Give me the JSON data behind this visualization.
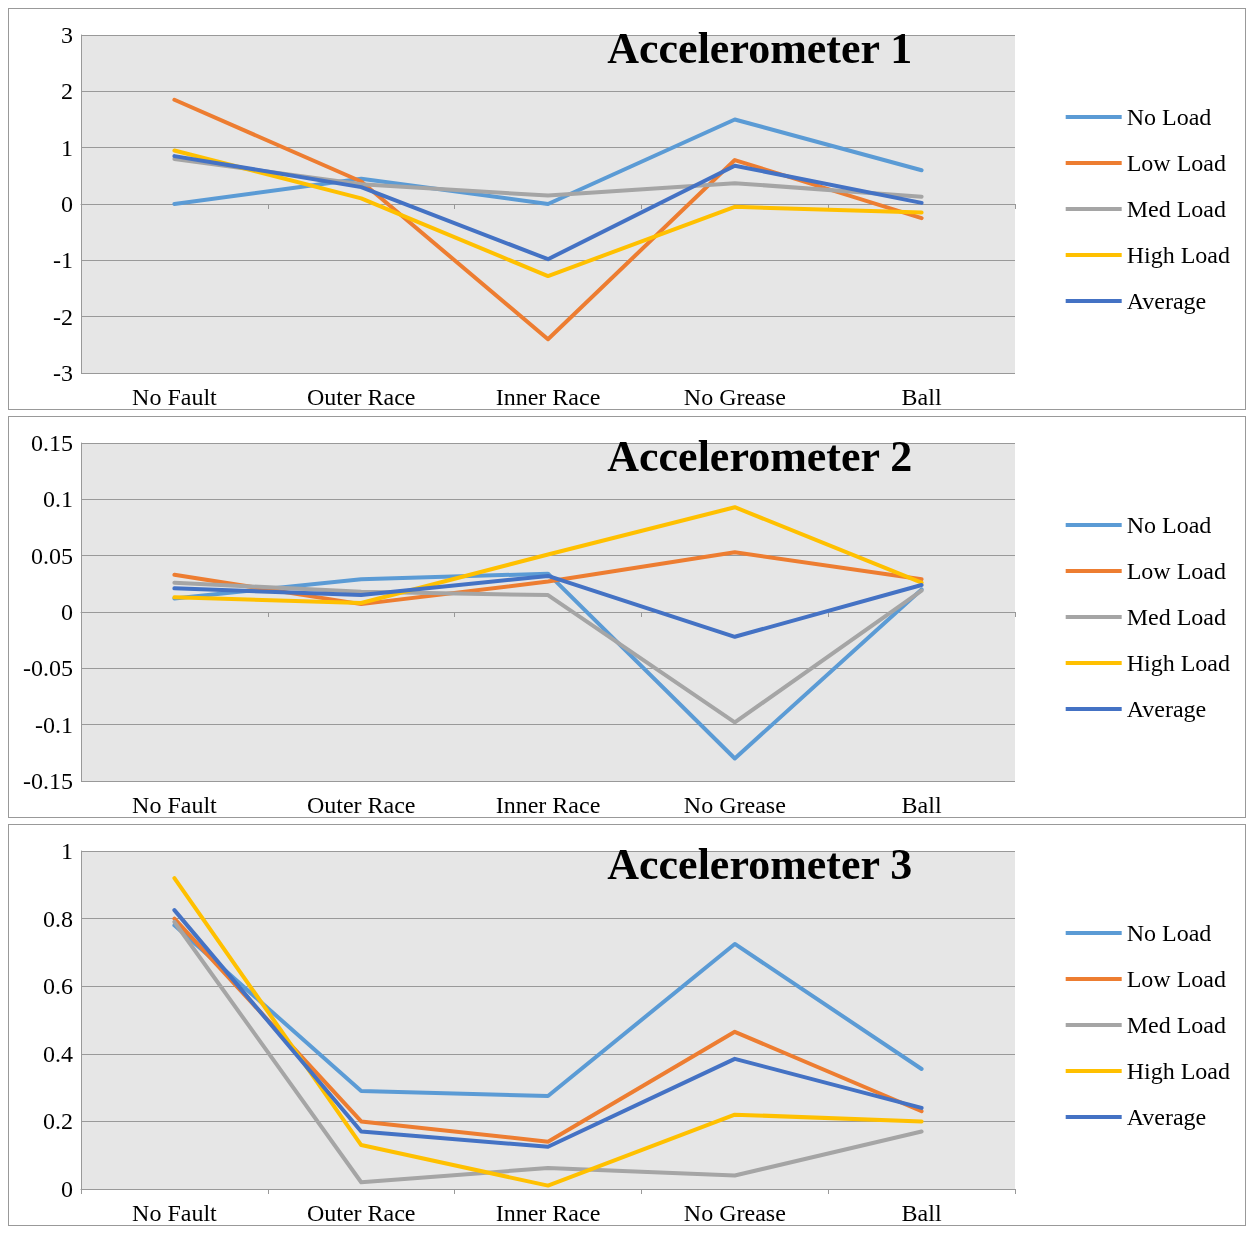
{
  "chart_data": [
    {
      "type": "line",
      "title": "Accelerometer 1",
      "categories": [
        "No Fault",
        "Outer Race",
        "Inner Race",
        "No Grease",
        "Ball"
      ],
      "ylim": [
        -3,
        3
      ],
      "yticks": [
        -3,
        -2,
        -1,
        0,
        1,
        2,
        3
      ],
      "grid": "y",
      "legend": "right",
      "marker": "none",
      "series": [
        {
          "name": "No Load",
          "color": "#5b9bd5",
          "values": [
            0,
            0.45,
            0,
            1.5,
            0.6
          ]
        },
        {
          "name": "Low Load",
          "color": "#ed7d31",
          "values": [
            1.85,
            0.4,
            -2.4,
            0.78,
            -0.25
          ]
        },
        {
          "name": "Med Load",
          "color": "#a5a5a5",
          "values": [
            0.8,
            0.35,
            0.15,
            0.37,
            0.13
          ]
        },
        {
          "name": "High Load",
          "color": "#ffc000",
          "values": [
            0.95,
            0.1,
            -1.28,
            -0.05,
            -0.15
          ]
        },
        {
          "name": "Average",
          "color": "#4472c4",
          "values": [
            0.85,
            0.3,
            -0.98,
            0.68,
            0.02
          ]
        }
      ]
    },
    {
      "type": "line",
      "title": "Accelerometer 2",
      "categories": [
        "No Fault",
        "Outer Race",
        "Inner Race",
        "No Grease",
        "Ball"
      ],
      "ylim": [
        -0.15,
        0.15
      ],
      "yticks": [
        -0.15,
        -0.1,
        -0.05,
        0,
        0.05,
        0.1,
        0.15
      ],
      "grid": "y",
      "legend": "right",
      "marker": "none",
      "series": [
        {
          "name": "No Load",
          "color": "#5b9bd5",
          "values": [
            0.012,
            0.029,
            0.034,
            -0.13,
            0.02
          ]
        },
        {
          "name": "Low Load",
          "color": "#ed7d31",
          "values": [
            0.033,
            0.007,
            0.027,
            0.053,
            0.029
          ]
        },
        {
          "name": "Med Load",
          "color": "#a5a5a5",
          "values": [
            0.026,
            0.018,
            0.015,
            -0.098,
            0.019
          ]
        },
        {
          "name": "High Load",
          "color": "#ffc000",
          "values": [
            0.013,
            0.008,
            0.051,
            0.093,
            0.026
          ]
        },
        {
          "name": "Average",
          "color": "#4472c4",
          "values": [
            0.021,
            0.015,
            0.032,
            -0.022,
            0.024
          ]
        }
      ]
    },
    {
      "type": "line",
      "title": "Accelerometer 3",
      "categories": [
        "No Fault",
        "Outer Race",
        "Inner Race",
        "No Grease",
        "Ball"
      ],
      "ylim": [
        0,
        1
      ],
      "yticks": [
        0,
        0.2,
        0.4,
        0.6,
        0.8,
        1
      ],
      "grid": "y",
      "legend": "right",
      "marker": "none",
      "series": [
        {
          "name": "No Load",
          "color": "#5b9bd5",
          "values": [
            0.78,
            0.29,
            0.275,
            0.725,
            0.355
          ]
        },
        {
          "name": "Low Load",
          "color": "#ed7d31",
          "values": [
            0.8,
            0.2,
            0.14,
            0.465,
            0.23
          ]
        },
        {
          "name": "Med Load",
          "color": "#a5a5a5",
          "values": [
            0.79,
            0.02,
            0.062,
            0.04,
            0.17
          ]
        },
        {
          "name": "High Load",
          "color": "#ffc000",
          "values": [
            0.92,
            0.13,
            0.01,
            0.22,
            0.2
          ]
        },
        {
          "name": "Average",
          "color": "#4472c4",
          "values": [
            0.825,
            0.17,
            0.125,
            0.385,
            0.24
          ]
        }
      ]
    }
  ]
}
